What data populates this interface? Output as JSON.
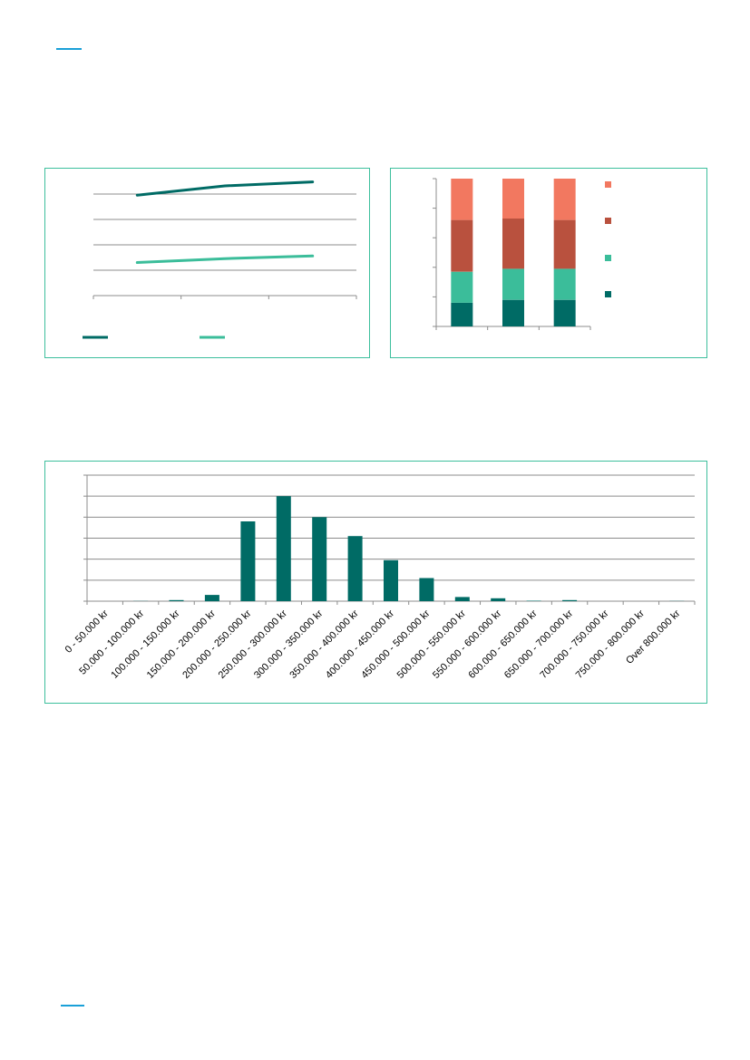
{
  "colors": {
    "accent_rule": "#1aa0d8",
    "panel_border": "#3dbf9d",
    "dark_teal": "#006b65",
    "light_teal": "#3bbd9a",
    "rust": "#b9513e",
    "salmon": "#f27860"
  },
  "chart_data": [
    {
      "type": "line",
      "x": [
        1,
        2,
        3
      ],
      "series": [
        {
          "values": [
            3.8,
            4.15,
            4.3
          ],
          "color": "#006b65"
        },
        {
          "values": [
            1.25,
            1.4,
            1.5
          ],
          "color": "#3bbd9a"
        }
      ],
      "ylim": [
        0,
        4.8
      ],
      "grid": true,
      "legend": "bottom-left"
    },
    {
      "type": "bar",
      "stacked": true,
      "percent": true,
      "categories": [
        "",
        "",
        ""
      ],
      "series": [
        {
          "values": [
            16,
            18,
            18
          ],
          "color": "#006b65"
        },
        {
          "values": [
            21,
            21,
            21
          ],
          "color": "#3bbd9a"
        },
        {
          "values": [
            35,
            34,
            33
          ],
          "color": "#b9513e"
        },
        {
          "values": [
            28,
            27,
            28
          ],
          "color": "#f27860"
        }
      ],
      "ylim": [
        0,
        100
      ],
      "grid": false,
      "legend": "right"
    },
    {
      "type": "bar",
      "categories": [
        "0 - 50.000 kr",
        "50.000 - 100.000 kr",
        "100.000 - 150.000 kr",
        "150.000 - 200.000 kr",
        "200.000 - 250.000 kr",
        "250.000 - 300.000 kr",
        "300.000 - 350.000 kr",
        "350.000 - 400.000 kr",
        "400.000 - 450.000 kr",
        "450.000 - 500.000 kr",
        "500.000 - 550.000 kr",
        "550.000 - 600.000 kr",
        "600.000 - 650.000 kr",
        "650.000 - 700.000 kr",
        "700.000 - 750.000 kr",
        "750.000 - 800.000 kr",
        "Over 800.000 kr"
      ],
      "values": [
        0,
        0.1,
        0.5,
        3,
        38,
        50,
        40,
        31,
        19.5,
        11,
        2,
        1.4,
        0.2,
        0.5,
        0,
        0,
        0.1
      ],
      "color": "#006b65",
      "ylim": [
        0,
        60
      ],
      "grid": true
    }
  ]
}
